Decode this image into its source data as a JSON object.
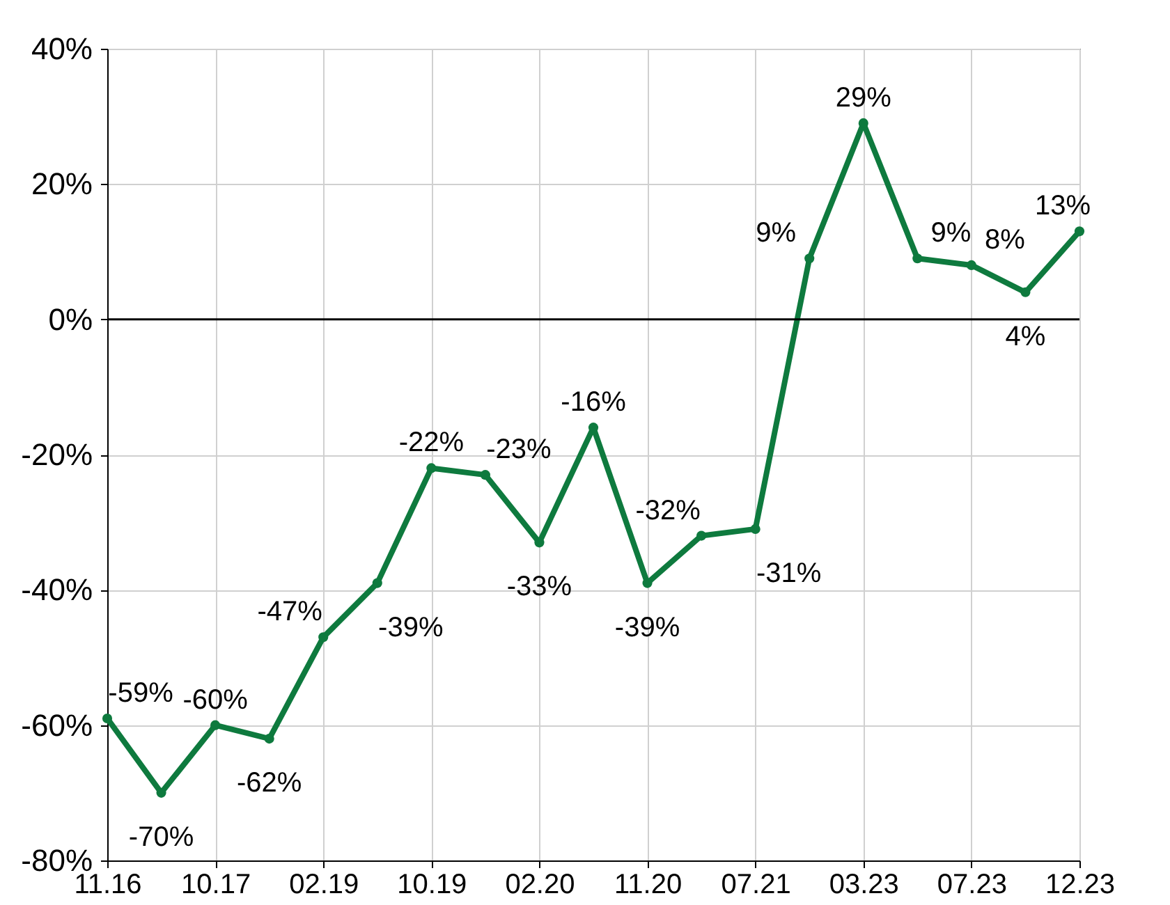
{
  "chart_data": {
    "type": "line",
    "categories": [
      "11.16",
      null,
      "10.17",
      null,
      "02.19",
      null,
      "10.19",
      null,
      "02.20",
      null,
      "11.20",
      null,
      "07.21",
      null,
      "03.23",
      null,
      "07.23",
      null,
      "12.23"
    ],
    "series": [
      {
        "color": "#0e7a3e",
        "values": [
          -59,
          -70,
          -60,
          -62,
          -47,
          -39,
          -22,
          -23,
          -33,
          -16,
          -39,
          -32,
          -31,
          9,
          29,
          9,
          8,
          4,
          13
        ],
        "value_labels": [
          "-59%",
          "-70%",
          "-60%",
          "-62%",
          "-47%",
          "-39%",
          "-22%",
          "-23%",
          "-33%",
          "-16%",
          "-39%",
          "-32%",
          "-31%",
          "9%",
          "29%",
          "9%",
          "8%",
          "4%",
          "13%"
        ]
      }
    ],
    "ylim": [
      -80,
      40
    ],
    "yticks": [
      {
        "value": -80,
        "label": "-80%"
      },
      {
        "value": -60,
        "label": "-60%"
      },
      {
        "value": -40,
        "label": "-40%"
      },
      {
        "value": -20,
        "label": "-20%"
      },
      {
        "value": 0,
        "label": "0%"
      },
      {
        "value": 20,
        "label": "20%"
      },
      {
        "value": 40,
        "label": "40%"
      }
    ],
    "grid": true,
    "marker": "circle",
    "line_style": "solid",
    "ref_lines": [
      {
        "axis": "y",
        "value": 0,
        "color": "#000000"
      }
    ]
  }
}
